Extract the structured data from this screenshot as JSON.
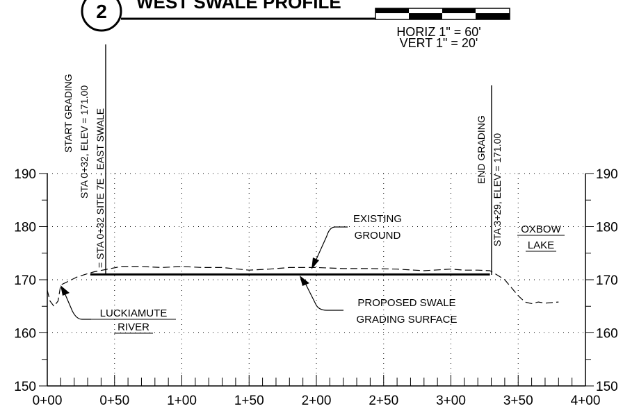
{
  "title": {
    "number": "2",
    "text": "WEST SWALE PROFILE"
  },
  "scale": {
    "horiz": "HORIZ 1\" = 60'",
    "vert": "VERT 1\" = 20'"
  },
  "axes": {
    "x_ticks": [
      "0+00",
      "0+50",
      "1+00",
      "1+50",
      "2+00",
      "2+50",
      "3+00",
      "3+50",
      "4+00"
    ],
    "y_ticks_left": [
      "190",
      "180",
      "170",
      "160",
      "150"
    ],
    "y_ticks_right": [
      "190",
      "180",
      "170",
      "160",
      "150"
    ]
  },
  "annotations": {
    "start_grading": {
      "line1": "START GRADING",
      "line2": "STA 0+32, ELEV = 171.00",
      "line3": "= STA 0+32 SITE 7E - EAST SWALE"
    },
    "end_grading": {
      "line1": "END GRADING",
      "line2": "STA 3+29, ELEV = 171.00"
    },
    "existing_ground": {
      "line1": "EXISTING",
      "line2": "GROUND"
    },
    "proposed_swale": {
      "line1": "PROPOSED SWALE",
      "line2": "GRADING SURFACE"
    },
    "river": {
      "line1": "LUCKIAMUTE",
      "line2": "RIVER"
    },
    "lake": {
      "line1": "OXBOW",
      "line2": "LAKE"
    }
  },
  "chart_data": {
    "type": "line",
    "x_unit": "station (ft)",
    "y_unit": "elevation (ft)",
    "xlim": [
      0,
      400
    ],
    "ylim": [
      150,
      190
    ],
    "grid": true,
    "series": [
      {
        "role": "existing ground (dashed)",
        "x": [
          0,
          2,
          5,
          8,
          10,
          14,
          18,
          22,
          28,
          35,
          45,
          55,
          70,
          85,
          100,
          115,
          130,
          150,
          165,
          180,
          200,
          220,
          240,
          260,
          280,
          300,
          310,
          320,
          329,
          335,
          340,
          345,
          350,
          355,
          360,
          365,
          370,
          380
        ],
        "y": [
          168,
          166,
          165,
          166,
          169,
          169.5,
          170,
          170.5,
          171,
          171.5,
          172,
          172.5,
          172.5,
          172.3,
          172.5,
          172.3,
          172.3,
          171.8,
          172,
          172.3,
          172.3,
          172.1,
          172.1,
          172,
          171.7,
          172,
          171.8,
          171.8,
          171.7,
          170.8,
          170,
          168.5,
          167,
          165.8,
          165.5,
          165.8,
          165.6,
          165.8
        ]
      },
      {
        "role": "proposed swale grading surface (solid)",
        "x": [
          32,
          329
        ],
        "y": [
          171,
          171
        ]
      }
    ]
  }
}
